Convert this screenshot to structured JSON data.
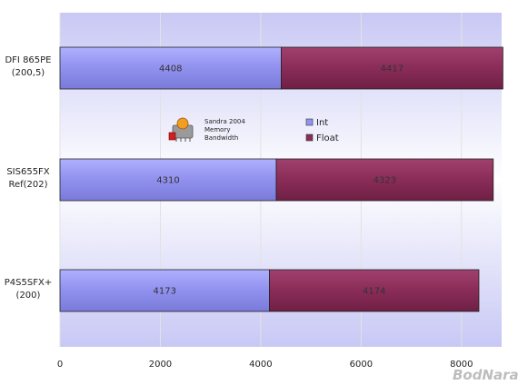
{
  "chart_data": {
    "type": "bar",
    "orientation": "horizontal",
    "stacked": true,
    "categories": [
      [
        "DFI 865PE",
        "(200,5)"
      ],
      [
        "SIS655FX",
        "Ref(202)"
      ],
      [
        "P4S5SFX+",
        "(200)"
      ]
    ],
    "series": [
      {
        "name": "Int",
        "values": [
          4408,
          4310,
          4173
        ],
        "color": "#9494f0"
      },
      {
        "name": "Float",
        "values": [
          4417,
          4323,
          4174
        ],
        "color": "#8c2d5a"
      }
    ],
    "xlim": [
      0,
      8800
    ],
    "xticks": [
      "0",
      "2000",
      "4000",
      "6000",
      "8000"
    ],
    "grid": true,
    "legend_position": "upper-middle",
    "title": "",
    "xlabel": "",
    "ylabel": ""
  },
  "logo": {
    "icon": "sandra-icon",
    "lines": [
      "Sandra 2004",
      "Memory",
      "Bandwidth"
    ]
  },
  "watermark": "BodNara",
  "colors": {
    "plot_background_edge": "#c8c8f5",
    "plot_background_center": "#ffffff",
    "grid": "#e0e0e0"
  }
}
